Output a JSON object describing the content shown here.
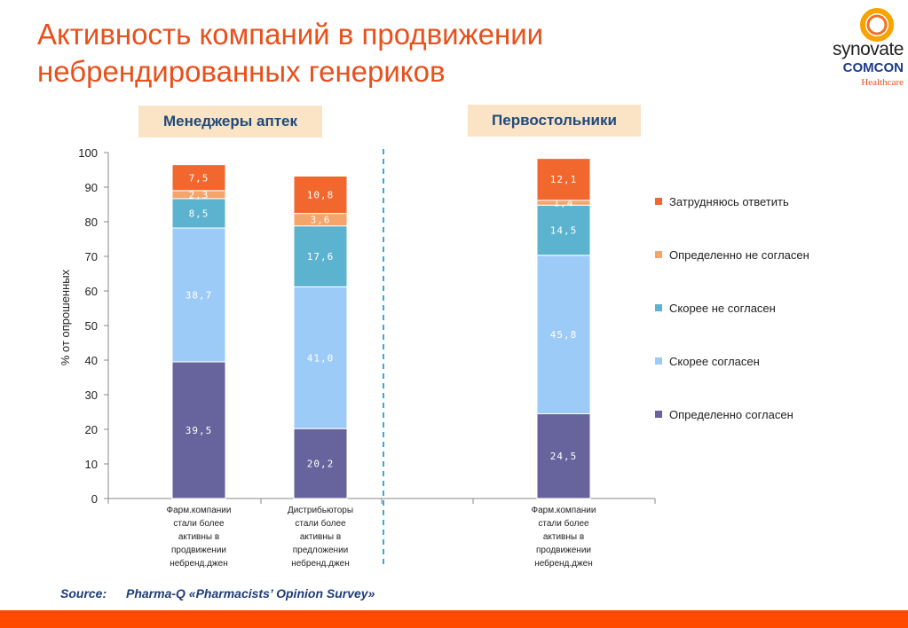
{
  "title": {
    "line1": "Активность компаний в продвижении",
    "line2": "небрендированных генериков"
  },
  "logo": {
    "brand": "synovate",
    "sub": "COMCON",
    "unit": "Healthcare"
  },
  "group_labels": [
    "Менеджеры аптек",
    "Первостольники"
  ],
  "colors": {
    "accent": "#e8501c",
    "footer": "#ff4a00",
    "group_label_bg": "#fbe4c5",
    "divider": "#3aa8d8"
  },
  "chart_data": {
    "type": "bar",
    "stacked": true,
    "ylabel": "% от опрошенных",
    "ylim": [
      0,
      100
    ],
    "yticks": [
      0,
      10,
      20,
      30,
      40,
      50,
      60,
      70,
      80,
      90,
      100
    ],
    "categories": [
      [
        "Фарм.компании",
        "стали более",
        "активны в",
        "продвижении",
        "небренд.джен"
      ],
      [
        "Дистрибьюторы",
        "стали более",
        "активны в",
        "предложении",
        "небренд.джен"
      ],
      [
        "Фарм.компании",
        "стали более",
        "активны в",
        "продвижении",
        "небренд.джен"
      ]
    ],
    "series": [
      {
        "name": "Определенно согласен",
        "color": "#67639c",
        "values": [
          39.5,
          20.2,
          24.5
        ],
        "labels": [
          "39,5",
          "20,2",
          "24,5"
        ]
      },
      {
        "name": "Скорее  согласен",
        "color": "#9ccbf7",
        "values": [
          38.7,
          41.0,
          45.8
        ],
        "labels": [
          "38,7",
          "41,0",
          "45,8"
        ]
      },
      {
        "name": "Скорее  не согласен",
        "color": "#5bb3cf",
        "values": [
          8.5,
          17.6,
          14.5
        ],
        "labels": [
          "8,5",
          "17,6",
          "14,5"
        ]
      },
      {
        "name": "Определенно  не согласен",
        "color": "#f5a46a",
        "values": [
          2.3,
          3.6,
          1.4
        ],
        "labels": [
          "2,3",
          "3,6",
          "1,4"
        ]
      },
      {
        "name": "Затрудняюсь ответить",
        "color": "#f2672e",
        "values": [
          7.5,
          10.8,
          12.1
        ],
        "labels": [
          "7,5",
          "10,8",
          "12,1"
        ]
      }
    ],
    "legend_order": [
      4,
      3,
      2,
      1,
      0
    ],
    "legend_position": "right",
    "grid": false
  },
  "source": {
    "label": "Source:",
    "text": "Pharma-Q «Pharmacists’ Opinion Survey»"
  }
}
